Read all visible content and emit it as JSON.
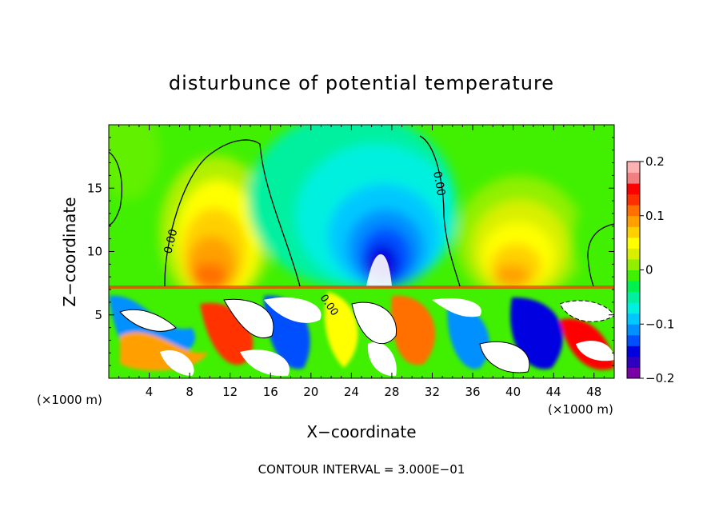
{
  "chart_data": {
    "type": "heatmap",
    "title": "disturbunce of potential temperature",
    "xlabel": "X−coordinate",
    "ylabel": "Z−coordinate",
    "x_unit_left": "(×1000 m)",
    "x_unit_right": "(×1000 m)",
    "xlim": [
      0,
      50
    ],
    "ylim": [
      0,
      20
    ],
    "x_ticks": [
      4,
      8,
      12,
      16,
      20,
      24,
      28,
      32,
      36,
      40,
      44,
      48
    ],
    "y_ticks": [
      5,
      10,
      15
    ],
    "colorbar": {
      "range": [
        -0.2,
        0.2
      ],
      "tick_values": [
        0.2,
        0.1,
        0,
        -0.1,
        -0.2
      ],
      "tick_labels": [
        "0.2",
        "0.1",
        "0",
        "−0.1",
        "−0.2"
      ],
      "colors": [
        "#7a00a8",
        "#3000c0",
        "#0000e0",
        "#0050ff",
        "#0090ff",
        "#00c8ff",
        "#00f0e0",
        "#00f0a0",
        "#00f050",
        "#40f000",
        "#90f000",
        "#d8f000",
        "#ffff00",
        "#ffd000",
        "#ffa000",
        "#ff7000",
        "#ff3000",
        "#ff0000",
        "#f08080",
        "#ffb0b0"
      ]
    },
    "contour_labels": [
      "0.00",
      "0.00",
      "0.00"
    ],
    "footer": "CONTOUR INTERVAL = 3.000E−01",
    "grid": false
  }
}
